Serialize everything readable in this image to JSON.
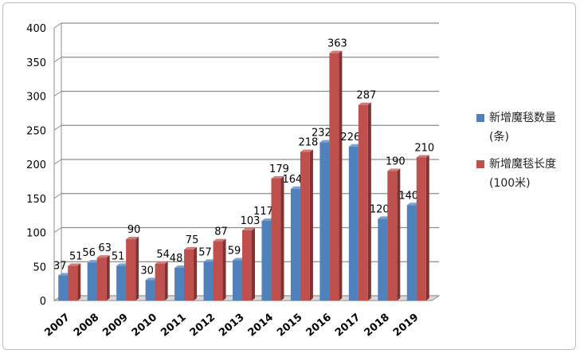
{
  "chart_data": {
    "type": "bar",
    "title": "",
    "xlabel": "",
    "ylabel": "",
    "ylim": [
      0,
      400
    ],
    "yticks": [
      0,
      50,
      100,
      150,
      200,
      250,
      300,
      350,
      400
    ],
    "ytick_labels": [
      "0",
      "50",
      "100",
      "150",
      "200",
      "250",
      "300",
      "350",
      "400"
    ],
    "categories": [
      "2007",
      "2008",
      "2009",
      "2010",
      "2011",
      "2012",
      "2013",
      "2014",
      "2015",
      "2016",
      "2017",
      "2018",
      "2019"
    ],
    "series": [
      {
        "name": "新增魔毯数量",
        "name_line2": "(条)",
        "color": "#4f81bd",
        "values": [
          37,
          56,
          51,
          30,
          48,
          57,
          59,
          117,
          164,
          232,
          226,
          120,
          140
        ],
        "labels": [
          "37",
          "56",
          "51",
          "30",
          "48",
          "57",
          "59",
          "117",
          "164",
          "232",
          "226",
          "120",
          "140"
        ]
      },
      {
        "name": "新增魔毯长度",
        "name_line2": "(100米)",
        "color": "#c0504d",
        "values": [
          51,
          63,
          90,
          54,
          75,
          87,
          103,
          179,
          218,
          363,
          287,
          190,
          210
        ],
        "labels": [
          "51",
          "63",
          "90",
          "54",
          "75",
          "87",
          "103",
          "179",
          "218",
          "363",
          "287",
          "190",
          "210"
        ]
      }
    ],
    "grid": true,
    "legend_position": "right"
  }
}
